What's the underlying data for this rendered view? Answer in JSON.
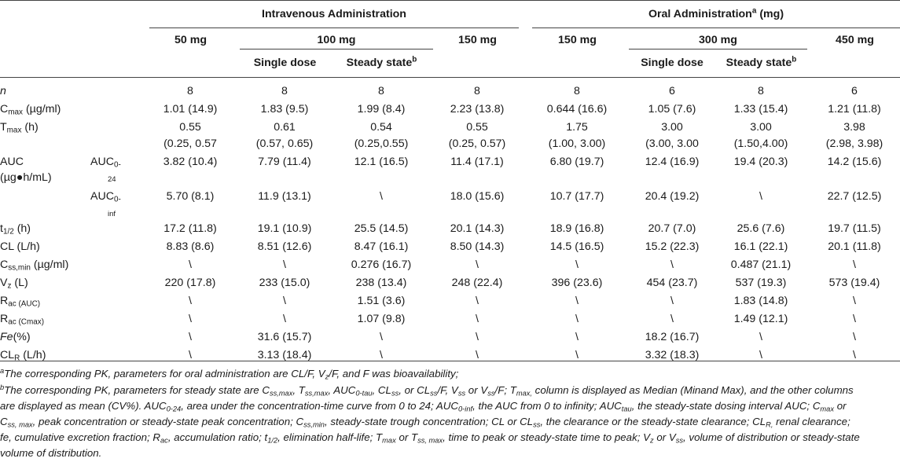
{
  "header": {
    "iv_title": "Intravenous Administration",
    "oral_title": "Oral Administration",
    "oral_title_sup": "a",
    "oral_title_unit": " (mg)",
    "iv_50": "50 mg",
    "iv_100": "100 mg",
    "iv_150": "150 mg",
    "oral_150": "150 mg",
    "oral_300": "300 mg",
    "oral_450": "450 mg",
    "single_dose": "Single dose",
    "steady_state": "Steady state",
    "steady_state_sup": "b"
  },
  "rows": [
    {
      "label": "n",
      "values": [
        "8",
        "8",
        "8",
        "8",
        "8",
        "6",
        "8",
        "6"
      ]
    },
    {
      "label_main": "C",
      "label_sub": "max",
      "label_tail": " (µg/ml)",
      "values": [
        "1.01 (14.9)",
        "1.83 (9.5)",
        "1.99 (8.4)",
        "2.23 (13.8)",
        "0.644 (16.6)",
        "1.05 (7.6)",
        "1.33 (15.4)",
        "1.21 (11.8)"
      ]
    },
    {
      "label_main": "T",
      "label_sub": "max",
      "label_tail": " (h)",
      "values": [
        "0.55",
        "0.61",
        "0.54",
        "0.55",
        "1.75",
        "3.00",
        "3.00",
        "3.98"
      ],
      "ranges": [
        "(0.25, 0.57",
        "(0.57, 0.65)",
        "(0.25,0.55)",
        "(0.25, 0.57)",
        "(1.00, 3.00)",
        "(3.00, 3.00",
        "(1.50,4.00)",
        "(2.98, 3.98)"
      ]
    },
    {
      "label": "AUC",
      "label2": "(µg●h/mL)",
      "sub_main": "AUC",
      "sub_sub": "0-",
      "sub_sub2": "24",
      "values": [
        "3.82 (10.4)",
        "7.79 (11.4)",
        "12.1 (16.5)",
        "11.4 (17.1)",
        "6.80 (19.7)",
        "12.4 (16.9)",
        "19.4 (20.3)",
        "14.2 (15.6)"
      ]
    },
    {
      "sub_main": "AUC",
      "sub_sub": "0-",
      "sub_sub2": "inf",
      "values": [
        "5.70 (8.1)",
        "11.9 (13.1)",
        "\\",
        "18.0 (15.6)",
        "10.7 (17.7)",
        "20.4 (19.2)",
        "\\",
        "22.7 (12.5)"
      ]
    },
    {
      "label_main": "t",
      "label_sub": "1/2",
      "label_tail": " (h)",
      "values": [
        "17.2 (11.8)",
        "19.1 (10.9)",
        "25.5 (14.5)",
        "20.1 (14.3)",
        "18.9 (16.8)",
        "20.7 (7.0)",
        "25.6 (7.6)",
        "19.7 (11.5)"
      ]
    },
    {
      "label": "CL (L/h)",
      "values": [
        "8.83 (8.6)",
        "8.51 (12.6)",
        "8.47 (16.1)",
        "8.50 (14.3)",
        "14.5 (16.5)",
        "15.2 (22.3)",
        "16.1 (22.1)",
        "20.1 (11.8)"
      ]
    },
    {
      "label_main": "C",
      "label_sub": "ss,min",
      "label_tail": " (µg/ml)",
      "values": [
        "\\",
        "\\",
        "0.276 (16.7)",
        "\\",
        "\\",
        "\\",
        "0.487 (21.1)",
        "\\"
      ]
    },
    {
      "label_main": "V",
      "label_sub": "z",
      "label_tail": " (L)",
      "values": [
        "220 (17.8)",
        "233 (15.0)",
        "238 (13.4)",
        "248 (22.4)",
        "396 (23.6)",
        "454 (23.7)",
        "537 (19.3)",
        "573 (19.4)"
      ]
    },
    {
      "label_main": "R",
      "label_sub": "ac (AUC)",
      "label_tail": "",
      "values": [
        "\\",
        "\\",
        "1.51 (3.6)",
        "\\",
        "\\",
        "\\",
        "1.83 (14.8)",
        "\\"
      ]
    },
    {
      "label_main": "R",
      "label_sub": "ac (Cmax)",
      "label_tail": "",
      "values": [
        "\\",
        "\\",
        "1.07 (9.8)",
        "\\",
        "\\",
        "\\",
        "1.49 (12.1)",
        "\\"
      ]
    },
    {
      "label_it": "Fe",
      "label_tail": "(%)",
      "values": [
        "\\",
        "31.6 (15.7)",
        "\\",
        "\\",
        "\\",
        "18.2 (16.7)",
        "\\",
        "\\"
      ]
    },
    {
      "label_main": "CL",
      "label_sub": "R",
      "label_tail": " (L/h)",
      "values": [
        "\\",
        "3.13 (18.4)",
        "\\",
        "\\",
        "\\",
        "3.32 (18.3)",
        "\\",
        "\\"
      ]
    }
  ],
  "footnotes": {
    "a_marker": "a",
    "a_text": "The corresponding PK, parameters for oral administration are CL/F, V",
    "a_sub": "z",
    "a_text2": "/F, and F was bioavailability;",
    "b_marker": "b",
    "b_line1_a": "The corresponding PK, parameters for steady state are C",
    "b_line1_s1": "ss,max",
    "b_line1_b": ", T",
    "b_line1_s2": "ss,max",
    "b_line1_c": ", AUC",
    "b_line1_s3": "0-tau",
    "b_line1_d": ", CL",
    "b_line1_s4": "ss",
    "b_line1_e": ", or CL",
    "b_line1_s5": "ss",
    "b_line1_f": "/F, V",
    "b_line1_s6": "ss",
    "b_line1_g": " or V",
    "b_line1_s7": "ss",
    "b_line1_h": "/F; T",
    "b_line1_s8": "max,",
    "b_line1_i": " column is displayed as Median (Minand Max), and the other columns",
    "line2_a": "are displayed as mean (CV%). AUC",
    "line2_s1": "0-24",
    "line2_b": ", area under the concentration-time curve from 0 to 24; AUC",
    "line2_s2": "0-inf",
    "line2_c": ", the AUC from 0 to infinity; AUC",
    "line2_s3": "tau",
    "line2_d": ", the steady-state dosing interval AUC; C",
    "line2_s4": "max",
    "line2_e": " or",
    "line3_a": "C",
    "line3_s1": "ss, max",
    "line3_b": ", peak concentration or steady-state peak concentration; C",
    "line3_s2": "ss,min",
    "line3_c": ", steady-state trough concentration; CL or CL",
    "line3_s3": "ss",
    "line3_d": ", the clearance or the steady-state clearance; CL",
    "line3_s4": "R,",
    "line3_e": " renal clearance;",
    "line4_a": "fe, cumulative excretion fraction; R",
    "line4_s1": "ac",
    "line4_b": ", accumulation ratio; t",
    "line4_s2": "1/2",
    "line4_c": ", elimination half-life; T",
    "line4_s3": "max",
    "line4_d": " or T",
    "line4_s4": "ss, max",
    "line4_e": ", time to peak or steady-state time to peak; V",
    "line4_s5": "z",
    "line4_f": " or V",
    "line4_s6": "ss",
    "line4_g": ", volume of distribution or steady-state",
    "line5": "volume of distribution."
  }
}
